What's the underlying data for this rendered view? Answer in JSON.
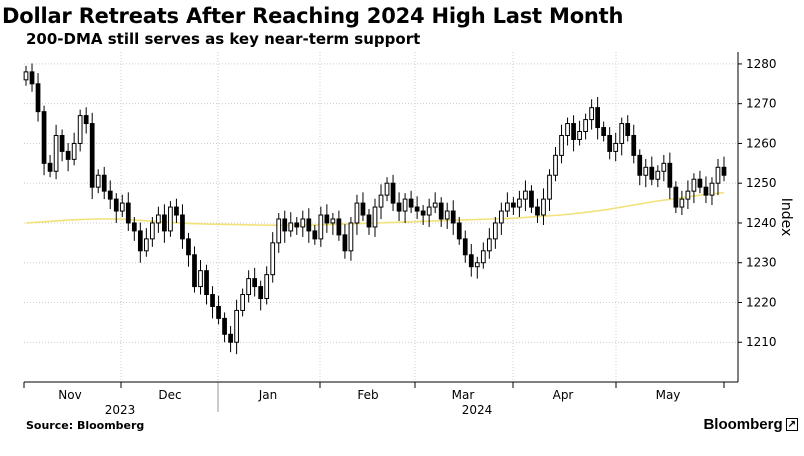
{
  "header": {
    "title": "Dollar Retreats After Reaching 2024 High Last Month",
    "subtitle": "200-DMA still serves as key near-term support"
  },
  "footer": {
    "source": "Source: Bloomberg",
    "brand": "Bloomberg"
  },
  "colors": {
    "up_candle_fill": "#ffffff",
    "down_candle_fill": "#000000",
    "candle_outline": "#000000",
    "dma_line": "#f2e27a",
    "grid": "#cccccc"
  },
  "chart_data": {
    "type": "candlestick",
    "title": "Dollar Retreats After Reaching 2024 High Last Month",
    "subtitle": "200-DMA still serves as key near-term support",
    "ylabel": "Index",
    "ylim": [
      1200,
      1283
    ],
    "yticks": [
      1210,
      1220,
      1230,
      1240,
      1250,
      1260,
      1270,
      1280
    ],
    "y_axis_position": "right",
    "grid": "dotted",
    "month_labels": [
      "Nov",
      "Dec",
      "Jan",
      "Feb",
      "Mar",
      "Apr",
      "May"
    ],
    "year_labels": [
      "2023",
      "2024"
    ],
    "candles_close": [
      1278,
      1275,
      1268,
      1255,
      1253,
      1262,
      1258,
      1256,
      1260,
      1267,
      1265,
      1249,
      1252,
      1248,
      1246,
      1243,
      1245,
      1240,
      1238,
      1233,
      1236,
      1240,
      1242,
      1238,
      1244,
      1242,
      1236,
      1232,
      1224,
      1228,
      1222,
      1219,
      1216,
      1212,
      1210,
      1218,
      1222,
      1226,
      1224,
      1221,
      1227,
      1235,
      1241,
      1238,
      1240,
      1239,
      1241,
      1238,
      1236,
      1242,
      1240,
      1241,
      1237,
      1233,
      1240,
      1245,
      1242,
      1239,
      1244,
      1247,
      1250,
      1245,
      1243,
      1246,
      1244,
      1243,
      1242,
      1244,
      1245,
      1241,
      1243,
      1240,
      1236,
      1232,
      1229,
      1230,
      1233,
      1236,
      1240,
      1243,
      1245,
      1244,
      1246,
      1248,
      1244,
      1242,
      1246,
      1252,
      1257,
      1262,
      1265,
      1261,
      1263,
      1266,
      1269,
      1264,
      1262,
      1258,
      1260,
      1265,
      1262,
      1257,
      1252,
      1254,
      1251,
      1253,
      1255,
      1249,
      1244,
      1246,
      1248,
      1251,
      1249,
      1247,
      1250,
      1254,
      1252
    ],
    "ma200": [
      1240,
      1240.4,
      1240.8,
      1241,
      1241,
      1240.6,
      1240.2,
      1239.9,
      1239.7,
      1239.6,
      1239.5,
      1239.4,
      1239.4,
      1239.6,
      1239.8,
      1240,
      1240.2,
      1240.4,
      1240.6,
      1240.8,
      1241,
      1241.2,
      1241.6,
      1242,
      1242.6,
      1243.4,
      1244.4,
      1245.4,
      1246.2,
      1247,
      1247.6
    ]
  }
}
